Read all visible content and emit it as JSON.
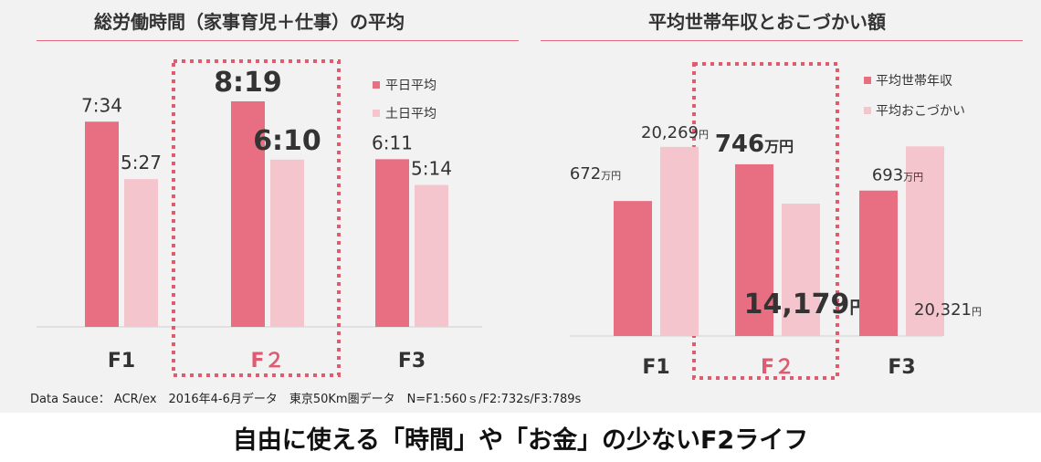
{
  "colors": {
    "weekday": "#e86f82",
    "weekend": "#f5c5cd",
    "accent": "#e05a70",
    "text": "#333333"
  },
  "chart_data": [
    {
      "id": "time",
      "type": "bar",
      "title": "総労働時間（家事育児＋仕事）の平均",
      "categories": [
        "F1",
        "F２",
        "F3"
      ],
      "highlight": "F２",
      "series": [
        {
          "name": "平日平均",
          "values": [
            7.567,
            8.317,
            6.183
          ],
          "labels": [
            "7:34",
            "8:19",
            "6:11"
          ]
        },
        {
          "name": "土日平均",
          "values": [
            5.45,
            6.167,
            5.233
          ],
          "labels": [
            "5:27",
            "6:10",
            "5:14"
          ]
        }
      ],
      "ylim": [
        0,
        10
      ]
    },
    {
      "id": "money",
      "type": "bar",
      "title": "平均世帯年収とおこづかい額",
      "categories": [
        "F1",
        "F２",
        "F3"
      ],
      "highlight": "F２",
      "series": [
        {
          "name": "平均世帯年収",
          "values": [
            672,
            746,
            693
          ],
          "labels": [
            "672万円",
            "746万円",
            "693万円"
          ]
        },
        {
          "name": "平均おこづかい",
          "values": [
            20269,
            14179,
            20321
          ],
          "labels": [
            "20,269円",
            "14,179円",
            "20,321円"
          ]
        }
      ],
      "ylim_series1": [
        400,
        800
      ],
      "ylim_series2": [
        0,
        26000
      ]
    }
  ],
  "source": "Data Sauce： ACR/ex　2016年4-6月データ　東京50Km圏データ　N=F1:560ｓ/F2:732s/F3:789s",
  "headline": "自由に使える「時間」や「お金」の少ないF2ライフ"
}
